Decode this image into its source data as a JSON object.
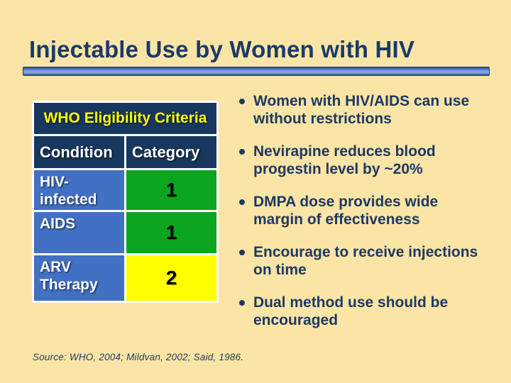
{
  "slide": {
    "title": "Injectable Use by Women with HIV",
    "source": "Source: WHO, 2004; Mildvan, 2002; Said, 1986."
  },
  "table": {
    "header": "WHO Eligibility Criteria",
    "columns": [
      "Condition",
      "Category"
    ],
    "rows": [
      {
        "condition": "HIV-infected",
        "category": "1",
        "category_color": "#0CA51F"
      },
      {
        "condition": "AIDS",
        "category": "1",
        "category_color": "#0CA51F"
      },
      {
        "condition": "ARV Therapy",
        "category": "2",
        "category_color": "#FFFF00"
      }
    ]
  },
  "bullets": [
    "Women with HIV/AIDS can use without restrictions",
    "Nevirapine reduces blood progestin level by ~20%",
    "DMPA dose provides wide margin of effectiveness",
    "Encourage to receive injections on time",
    "Dual method use should be encouraged"
  ],
  "colors": {
    "background": "#FAE5A6",
    "title_text": "#1B3A68",
    "bullet_text": "#1F3864",
    "table_header_bg": "#17375E",
    "table_header_text": "#FFFF00",
    "condition_cell_bg": "#4170C4",
    "category1_bg": "#0CA51F",
    "category2_bg": "#FFFF00",
    "divider_bar": "#4F74BE"
  }
}
